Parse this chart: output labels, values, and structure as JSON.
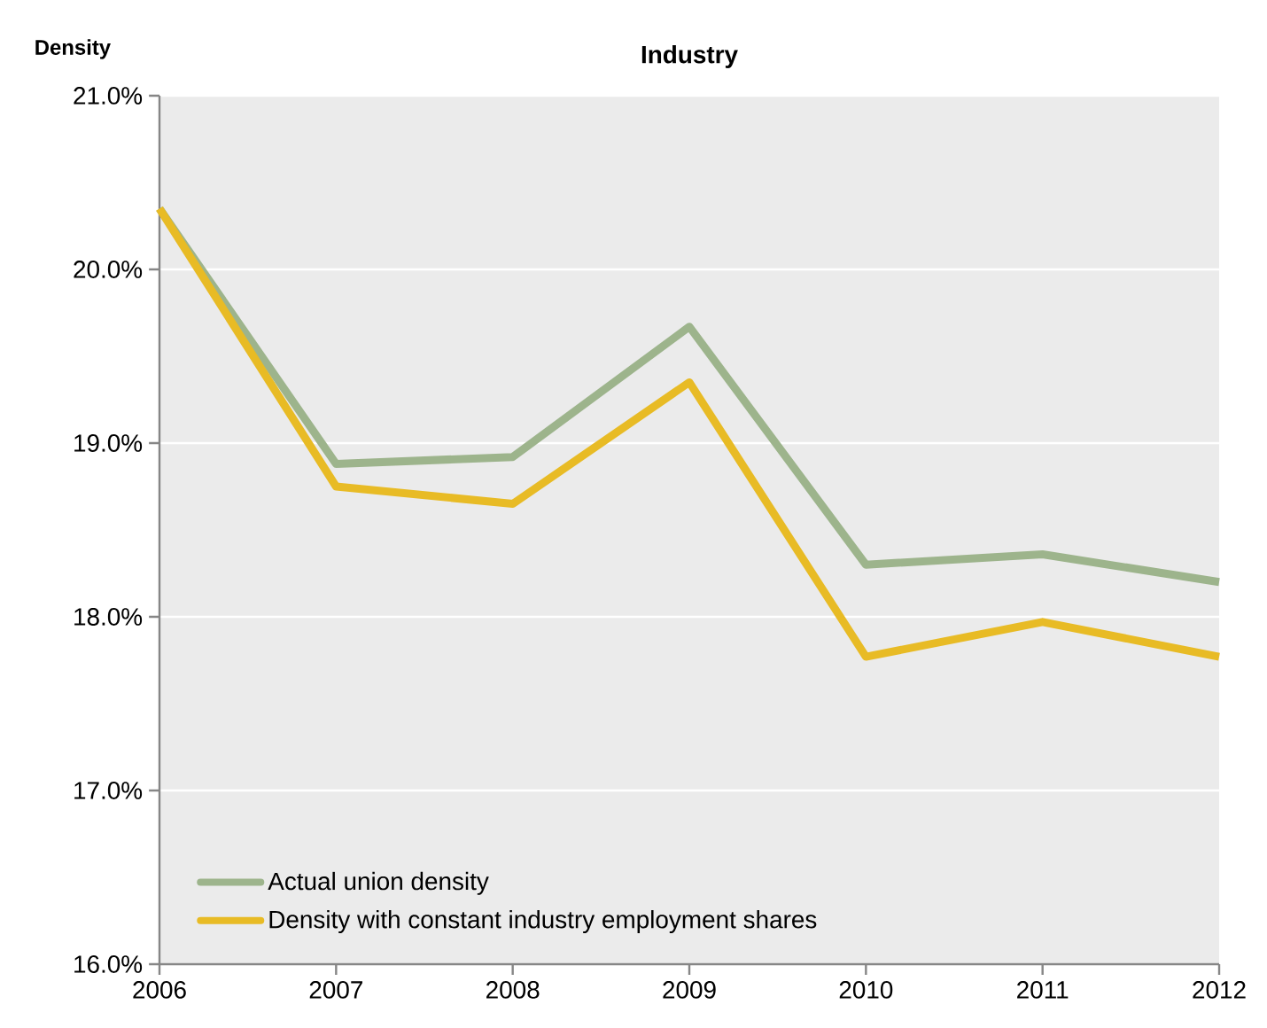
{
  "chart_data": {
    "type": "line",
    "title": "Industry",
    "ylabel": "Density",
    "x": [
      2006,
      2007,
      2008,
      2009,
      2010,
      2011,
      2012
    ],
    "series": [
      {
        "name": "Actual union density",
        "color": "#9db48c",
        "values": [
          20.35,
          18.88,
          18.92,
          19.67,
          18.3,
          18.36,
          18.2
        ]
      },
      {
        "name": "Density with constant industry employment shares",
        "color": "#e8bb25",
        "values": [
          20.35,
          18.75,
          18.65,
          19.35,
          17.77,
          17.97,
          17.77
        ]
      }
    ],
    "xlim": [
      2006,
      2012
    ],
    "xticks": [
      2006,
      2007,
      2008,
      2009,
      2010,
      2011,
      2012
    ],
    "ylim": [
      16,
      21
    ],
    "yticks": [
      {
        "value": 16,
        "label": "16.0%"
      },
      {
        "value": 17,
        "label": "17.0%"
      },
      {
        "value": 18,
        "label": "18.0%"
      },
      {
        "value": 19,
        "label": "19.0%"
      },
      {
        "value": 20,
        "label": "20.0%"
      },
      {
        "value": 21,
        "label": "21.0%"
      }
    ],
    "grid": "y",
    "legend": "bottom left"
  }
}
